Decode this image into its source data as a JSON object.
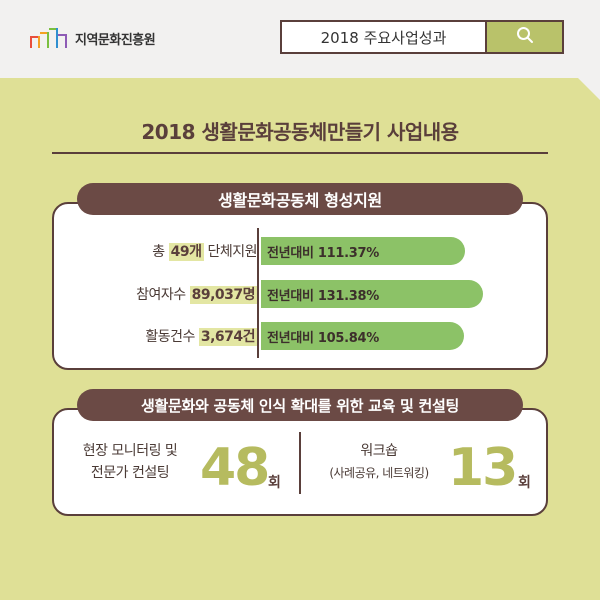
{
  "header": {
    "logo_text": "지역문화진흥원",
    "logo_icon": "org-logo-icon",
    "search_value": "2018 주요사업성과",
    "search_icon": "search-icon"
  },
  "main_title": "2018 생활문화공동체만들기 사업내용",
  "section1": {
    "title": "생활문화공동체 형성지원",
    "rows": [
      {
        "prefix": "총 ",
        "highlight": "49개",
        "suffix": " 단체지원",
        "bar_text": "전년대비 111.37%"
      },
      {
        "prefix": "참여자수 ",
        "highlight": "89,037명",
        "suffix": "",
        "bar_text": "전년대비 131.38%"
      },
      {
        "prefix": "활동건수 ",
        "highlight": "3,674건",
        "suffix": "",
        "bar_text": "전년대비 105.84%"
      }
    ]
  },
  "section2": {
    "title": "생활문화와 공동체 인식 확대를 위한 교육 및 컨설팅",
    "left": {
      "line1": "현장 모니터링 및",
      "line2": "전문가 컨설팅",
      "value": "48",
      "unit": "회"
    },
    "right": {
      "line1": "워크숍",
      "line2": "(사례공유, 네트워킹)",
      "value": "13",
      "unit": "회"
    }
  },
  "colors": {
    "background": "#dfe096",
    "header": "#f2f1f0",
    "brown": "#5a3f3b",
    "pill": "#6b4a45",
    "bar": "#8cc267",
    "highlight": "#e3e6a3",
    "number": "#b6bb5f"
  }
}
